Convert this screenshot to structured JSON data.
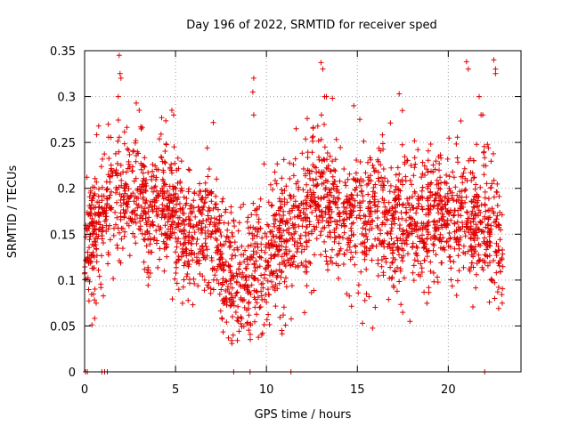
{
  "chart_data": {
    "type": "scatter",
    "title": "Day 196 of 2022, SRMTID for receiver sped",
    "xlabel": "GPS time / hours",
    "ylabel": "SRMTID / TECUs",
    "xlim": [
      0,
      24
    ],
    "ylim": [
      0,
      0.35
    ],
    "xticks": [
      0,
      5,
      10,
      15,
      20
    ],
    "yticks": [
      0,
      0.05,
      0.1,
      0.15,
      0.2,
      0.25,
      0.3,
      0.35
    ],
    "ytick_labels": [
      "0",
      "0.05",
      "0.1",
      "0.15",
      "0.2",
      "0.25",
      "0.3",
      "0.35"
    ],
    "grid": true,
    "marker": "+",
    "series_color": "#e00000",
    "trend": [
      [
        0.0,
        0.14
      ],
      [
        0.5,
        0.15
      ],
      [
        1.0,
        0.17
      ],
      [
        1.5,
        0.19
      ],
      [
        2.0,
        0.2
      ],
      [
        2.5,
        0.19
      ],
      [
        3.0,
        0.2
      ],
      [
        3.5,
        0.17
      ],
      [
        4.0,
        0.18
      ],
      [
        4.5,
        0.18
      ],
      [
        5.0,
        0.17
      ],
      [
        5.5,
        0.15
      ],
      [
        6.0,
        0.14
      ],
      [
        6.5,
        0.15
      ],
      [
        7.0,
        0.16
      ],
      [
        7.5,
        0.12
      ],
      [
        8.0,
        0.1
      ],
      [
        8.5,
        0.09
      ],
      [
        9.0,
        0.1
      ],
      [
        9.5,
        0.11
      ],
      [
        10.0,
        0.12
      ],
      [
        10.5,
        0.14
      ],
      [
        11.0,
        0.15
      ],
      [
        11.5,
        0.15
      ],
      [
        12.0,
        0.17
      ],
      [
        12.5,
        0.18
      ],
      [
        13.0,
        0.2
      ],
      [
        13.5,
        0.18
      ],
      [
        14.0,
        0.16
      ],
      [
        14.5,
        0.17
      ],
      [
        15.0,
        0.18
      ],
      [
        15.5,
        0.16
      ],
      [
        16.0,
        0.17
      ],
      [
        16.5,
        0.17
      ],
      [
        17.0,
        0.16
      ],
      [
        17.5,
        0.17
      ],
      [
        18.0,
        0.17
      ],
      [
        18.5,
        0.16
      ],
      [
        19.0,
        0.17
      ],
      [
        19.5,
        0.17
      ],
      [
        20.0,
        0.17
      ],
      [
        20.5,
        0.18
      ],
      [
        21.0,
        0.17
      ],
      [
        21.5,
        0.16
      ],
      [
        22.0,
        0.16
      ],
      [
        22.5,
        0.15
      ],
      [
        23.0,
        0.13
      ]
    ],
    "spread": 0.045,
    "point_count": 2600,
    "spikes": [
      [
        1.9,
        0.345
      ],
      [
        1.95,
        0.325
      ],
      [
        2.0,
        0.32
      ],
      [
        1.85,
        0.3
      ],
      [
        3.0,
        0.285
      ],
      [
        9.3,
        0.32
      ],
      [
        9.25,
        0.305
      ],
      [
        9.3,
        0.28
      ],
      [
        13.0,
        0.337
      ],
      [
        13.1,
        0.33
      ],
      [
        13.2,
        0.3
      ],
      [
        13.3,
        0.3
      ],
      [
        14.8,
        0.29
      ],
      [
        17.3,
        0.303
      ],
      [
        21.0,
        0.338
      ],
      [
        21.1,
        0.33
      ],
      [
        22.5,
        0.34
      ],
      [
        22.6,
        0.33
      ],
      [
        22.6,
        0.325
      ],
      [
        21.7,
        0.3
      ],
      [
        21.8,
        0.28
      ],
      [
        21.9,
        0.28
      ],
      [
        4.8,
        0.285
      ],
      [
        4.9,
        0.28
      ]
    ],
    "zeros": [
      0.05,
      0.15,
      0.95,
      1.1,
      1.25,
      8.2,
      9.1,
      11.35,
      22.0
    ]
  }
}
